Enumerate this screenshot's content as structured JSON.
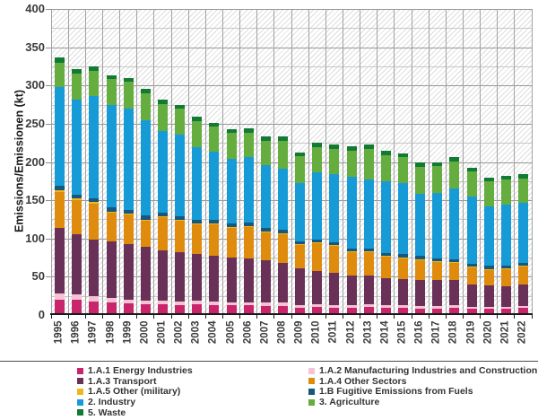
{
  "chart_data": {
    "type": "bar",
    "stacked": true,
    "title": "",
    "xlabel": "",
    "ylabel": "Emissions/Emissionen (kt)",
    "ylim": [
      0,
      400
    ],
    "ytick_step": 50,
    "minor_ytick_step": 25,
    "grid": true,
    "background_hatch": true,
    "legend_position": "bottom",
    "categories": [
      "1995",
      "1996",
      "1997",
      "1998",
      "1999",
      "2000",
      "2001",
      "2002",
      "2003",
      "2004",
      "2005",
      "2006",
      "2007",
      "2008",
      "2009",
      "2010",
      "2011",
      "2012",
      "2013",
      "2014",
      "2015",
      "2016",
      "2017",
      "2018",
      "2019",
      "2020",
      "2021",
      "2022"
    ],
    "series": [
      {
        "name": "1.A.1 Energy Industries",
        "color": "#c9256b",
        "values": [
          19.5,
          19.5,
          17.5,
          16.5,
          15,
          14,
          14,
          13.5,
          14,
          13.5,
          13,
          13,
          12,
          12,
          9,
          10,
          9,
          9,
          10,
          9,
          9,
          8,
          8,
          9,
          8,
          8,
          8,
          9
        ]
      },
      {
        "name": "1.A.2 Manufacturing Industries and Construction",
        "color": "#f5c3d4",
        "values": [
          8.2,
          7.5,
          7.1,
          5.5,
          5.5,
          5,
          4.5,
          4.5,
          4.5,
          4.5,
          4,
          4,
          4,
          4,
          4,
          4,
          4,
          4,
          4,
          4,
          4,
          4,
          4,
          4,
          3,
          3,
          3,
          3
        ]
      },
      {
        "name": "1.A.3 Transport",
        "color": "#693158",
        "values": [
          86.6,
          78.6,
          74,
          74.7,
          72.3,
          69.9,
          66.5,
          63.9,
          61.4,
          60,
          58.2,
          57.5,
          55.3,
          52,
          47.5,
          43.7,
          41.6,
          38.8,
          37.1,
          35,
          34.1,
          34,
          34,
          32.3,
          28.4,
          27.2,
          26.4,
          28.1
        ]
      },
      {
        "name": "1.A.4 Other Sectors",
        "color": "#df8c0e",
        "values": [
          46.2,
          44.9,
          47.4,
          36.8,
          38.2,
          34.1,
          42.7,
          41.9,
          39.2,
          41,
          39.3,
          40.6,
          36.8,
          37.4,
          31.3,
          36,
          35.4,
          30.2,
          30.9,
          28.2,
          27.5,
          26.3,
          23.6,
          22.4,
          22.6,
          21.1,
          22.7,
          23.1
        ]
      },
      {
        "name": "1.A.5 Other (military)",
        "color": "#eeb71c",
        "values": [
          3,
          1.5,
          1.5,
          1.5,
          1.4,
          1.2,
          1,
          1,
          1,
          1,
          1,
          1,
          1,
          1,
          1,
          1,
          1,
          1,
          1,
          1,
          1,
          1,
          1,
          1,
          1,
          1,
          1,
          1
        ]
      },
      {
        "name": "1.B Fugitive Emissions from Fuels",
        "color": "#15577d",
        "values": [
          6,
          5.5,
          5.5,
          5.5,
          5.4,
          5.6,
          4.8,
          4.8,
          4.8,
          4,
          4.6,
          4.7,
          5.2,
          5.1,
          3.9,
          3.6,
          4,
          4,
          3.6,
          3.8,
          3.8,
          3.9,
          3.9,
          3.8,
          3.9,
          3.9,
          3.8,
          3.8
        ]
      },
      {
        "name": "2. Industry",
        "color": "#179bd7",
        "values": [
          128,
          124.1,
          133,
          133.5,
          131.6,
          124.8,
          107.4,
          106.7,
          94.6,
          90,
          83.9,
          85.2,
          81.7,
          79.5,
          75.9,
          88.1,
          89.4,
          93.5,
          90.8,
          93.6,
          93.3,
          80.7,
          84.5,
          92.4,
          87.5,
          78.1,
          79.3,
          78.2
        ]
      },
      {
        "name": "3. Agriculture",
        "color": "#64ad3e",
        "values": [
          32.5,
          34.5,
          33,
          34,
          35.1,
          35.1,
          34.3,
          33.1,
          34.3,
          32,
          34,
          32.2,
          32,
          37,
          34.8,
          33.1,
          33.2,
          33.9,
          39.4,
          34.4,
          33.3,
          36.1,
          35.6,
          35.9,
          33.5,
          32.7,
          32.8,
          32.4
        ]
      },
      {
        "name": "5. Waste",
        "color": "#117a33",
        "values": [
          7,
          4.9,
          6,
          5.5,
          5.5,
          5.9,
          5.9,
          5.5,
          5.5,
          5.5,
          4.9,
          5.4,
          5.1,
          5.5,
          5,
          5.9,
          5.8,
          5.8,
          5.8,
          5.4,
          5,
          5.2,
          5.4,
          5.9,
          4.3,
          4.8,
          4.6,
          5.8
        ]
      }
    ],
    "legend_columns": [
      [
        "1.A.1 Energy Industries",
        "1.A.3 Transport",
        "1.A.5 Other (military)",
        "2. Industry",
        "5. Waste"
      ],
      [
        "1.A.2 Manufacturing Industries and Construction",
        "1.A.4 Other Sectors",
        "1.B Fugitive Emissions from Fuels",
        "3. Agriculture"
      ]
    ]
  }
}
